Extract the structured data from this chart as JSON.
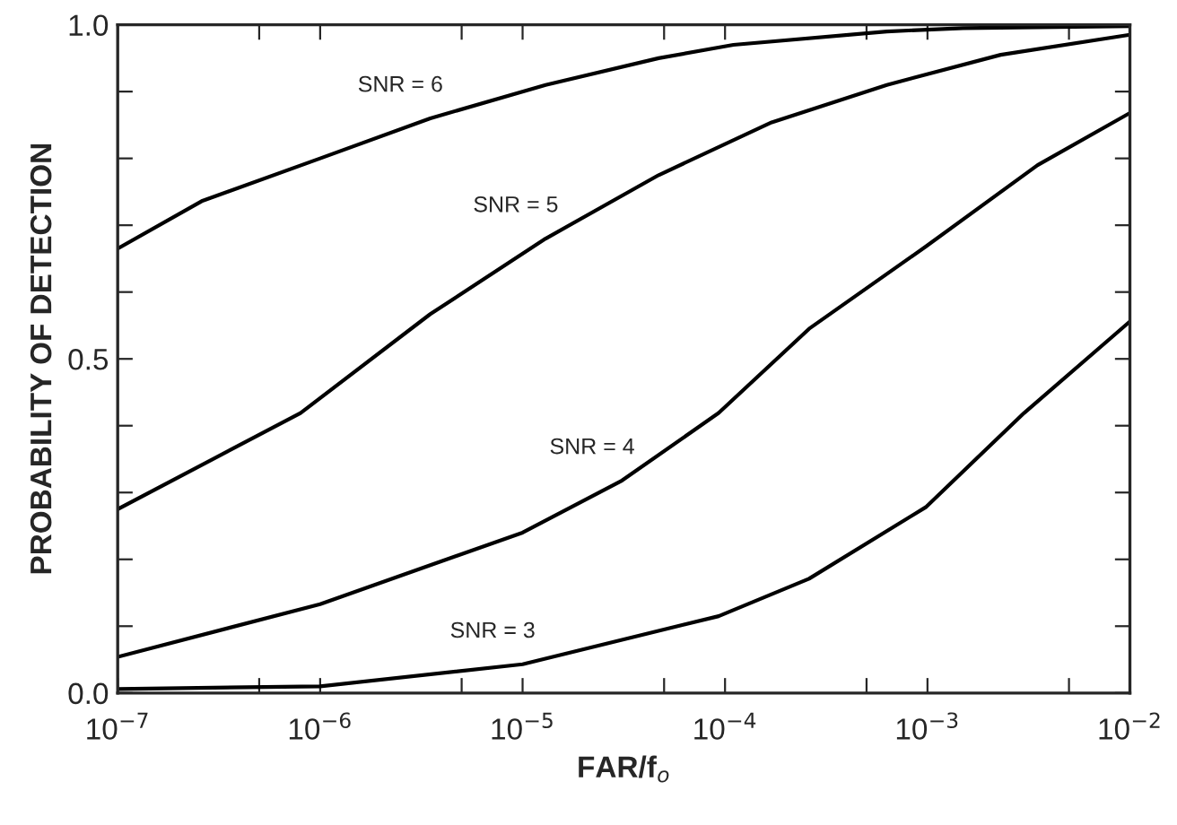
{
  "chart_data": {
    "type": "line",
    "xlabel": "FAR/f$_{o}$",
    "ylabel": "PROBABILITY OF DETECTION",
    "log": "x",
    "grid": false,
    "legend": false,
    "xlim": [
      1e-07,
      0.01
    ],
    "ylim": [
      0,
      1
    ],
    "xticks": [
      {
        "value": 1e-07,
        "label": "10$^{−7}$"
      },
      {
        "value": 5e-07,
        "label": null
      },
      {
        "value": 1e-06,
        "label": "10$^{−6}$"
      },
      {
        "value": 5e-06,
        "label": null
      },
      {
        "value": 1e-05,
        "label": "10$^{−5}$"
      },
      {
        "value": 5e-05,
        "label": null
      },
      {
        "value": 0.0001,
        "label": "10$^{−4}$"
      },
      {
        "value": 0.0005,
        "label": null
      },
      {
        "value": 0.001,
        "label": "10$^{−3}$"
      },
      {
        "value": 0.005,
        "label": null
      },
      {
        "value": 0.01,
        "label": "10$^{−2}$"
      }
    ],
    "yticks": [
      {
        "value": 0,
        "label": "0.0"
      },
      {
        "value": 0.1,
        "label": null
      },
      {
        "value": 0.2,
        "label": null
      },
      {
        "value": 0.3,
        "label": null
      },
      {
        "value": 0.4,
        "label": null
      },
      {
        "value": 0.5,
        "label": "0.5"
      },
      {
        "value": 0.6,
        "label": null
      },
      {
        "value": 0.7,
        "label": null
      },
      {
        "value": 0.8,
        "label": null
      },
      {
        "value": 0.9,
        "label": null
      },
      {
        "value": 1.0,
        "label": "1.0"
      }
    ],
    "series": [
      {
        "name": "SNR = 6",
        "color": "#000000",
        "x": [
          1e-07,
          2.6e-07,
          1e-06,
          3.5e-06,
          1.3e-05,
          4.7e-05,
          0.00011,
          0.00063,
          0.0015,
          0.01
        ],
        "values": [
          0.665,
          0.736,
          0.8,
          0.86,
          0.91,
          0.95,
          0.97,
          0.99,
          0.995,
          0.998
        ]
      },
      {
        "name": "SNR = 5",
        "color": "#000000",
        "x": [
          1e-07,
          8e-07,
          3.5e-06,
          1.3e-05,
          4.7e-05,
          0.00017,
          0.00063,
          0.0023,
          0.01
        ],
        "values": [
          0.275,
          0.419,
          0.567,
          0.68,
          0.775,
          0.854,
          0.91,
          0.955,
          0.985
        ]
      },
      {
        "name": "SNR = 4",
        "color": "#000000",
        "x": [
          1e-07,
          1e-06,
          1e-05,
          3.1e-05,
          9.3e-05,
          0.00026,
          0.00098,
          0.0035,
          0.01
        ],
        "values": [
          0.054,
          0.133,
          0.24,
          0.318,
          0.419,
          0.545,
          0.668,
          0.79,
          0.868
        ]
      },
      {
        "name": "SNR = 3",
        "color": "#000000",
        "x": [
          1e-07,
          1e-06,
          1e-05,
          9.3e-05,
          0.00026,
          0.00098,
          0.003,
          0.01
        ],
        "values": [
          0.006,
          0.01,
          0.043,
          0.115,
          0.171,
          0.278,
          0.419,
          0.556
        ]
      }
    ]
  }
}
